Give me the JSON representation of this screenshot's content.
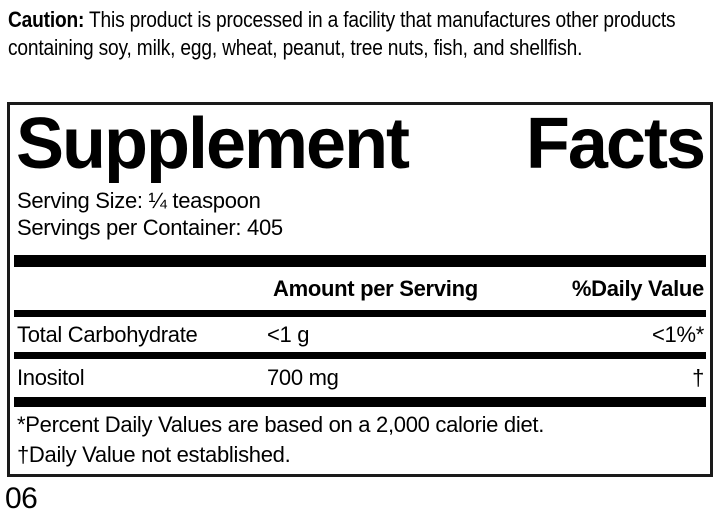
{
  "caution": {
    "label": "Caution:",
    "text": " This product is processed in a facility that manufactures other products containing soy, milk, egg, wheat, peanut, tree nuts, fish, and shellfish."
  },
  "panel": {
    "title": {
      "left": "Supplement",
      "right": "Facts"
    },
    "serving_size": "Serving Size: ¼ teaspoon",
    "servings_per_container": "Servings per Container: 405",
    "columns": {
      "amount": "Amount per Serving",
      "daily_value": "%Daily Value"
    },
    "rows": [
      {
        "name": "Total Carbohydrate",
        "amount": "<1 g",
        "dv": "<1%*"
      },
      {
        "name": "Inositol",
        "amount": "700 mg",
        "dv": "†"
      }
    ],
    "footnotes": [
      "*Percent Daily Values are based on a 2,000 calorie diet.",
      "†Daily Value not established."
    ]
  },
  "footer": {
    "code": "06"
  }
}
